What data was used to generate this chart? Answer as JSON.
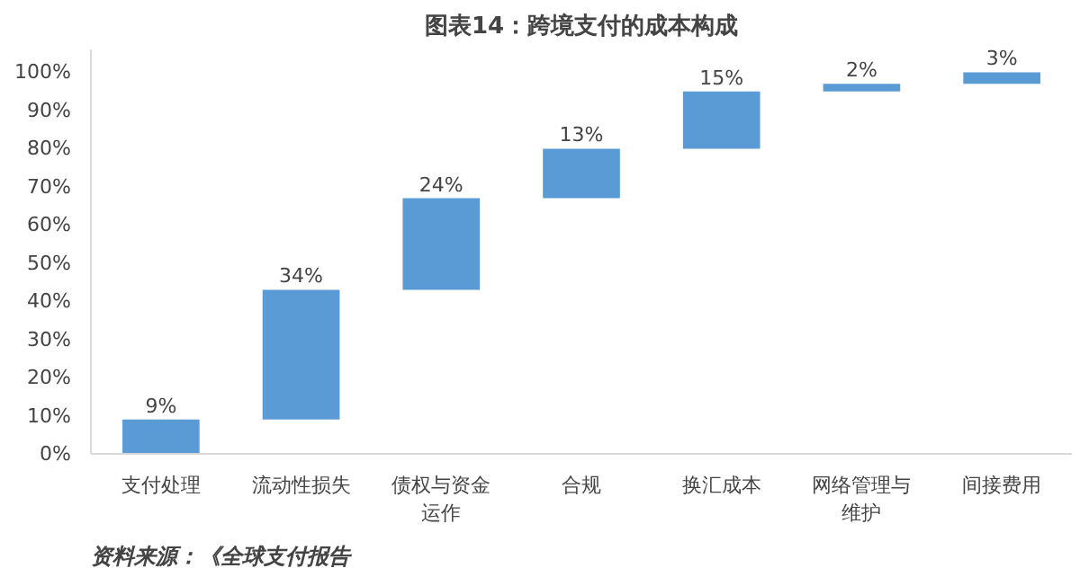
{
  "chart_data": {
    "type": "bar",
    "title": "图表14：跨境支付的成本构成",
    "categories": [
      "支付处理",
      "流动性损失",
      "债权与资金运作",
      "合规",
      "换汇成本",
      "网络管理与维护",
      "间接费用"
    ],
    "values": [
      9,
      34,
      24,
      13,
      15,
      2,
      3
    ],
    "base": [
      0,
      9,
      43,
      67,
      80,
      95,
      97
    ],
    "value_labels": [
      "9%",
      "34%",
      "24%",
      "13%",
      "15%",
      "2%",
      "3%"
    ],
    "color": "#5b9bd5",
    "ylim": [
      0,
      106
    ],
    "yticks": [
      {
        "value": 0,
        "label": "0%"
      },
      {
        "value": 10,
        "label": "10%"
      },
      {
        "value": 20,
        "label": "20%"
      },
      {
        "value": 30,
        "label": "30%"
      },
      {
        "value": 40,
        "label": "40%"
      },
      {
        "value": 50,
        "label": "50%"
      },
      {
        "value": 60,
        "label": "60%"
      },
      {
        "value": 70,
        "label": "70%"
      },
      {
        "value": 80,
        "label": "80%"
      },
      {
        "value": 90,
        "label": "90%"
      },
      {
        "value": 100,
        "label": "100%"
      }
    ],
    "grid": false,
    "annotations": [
      "资料来源：《全球支付报告"
    ]
  }
}
